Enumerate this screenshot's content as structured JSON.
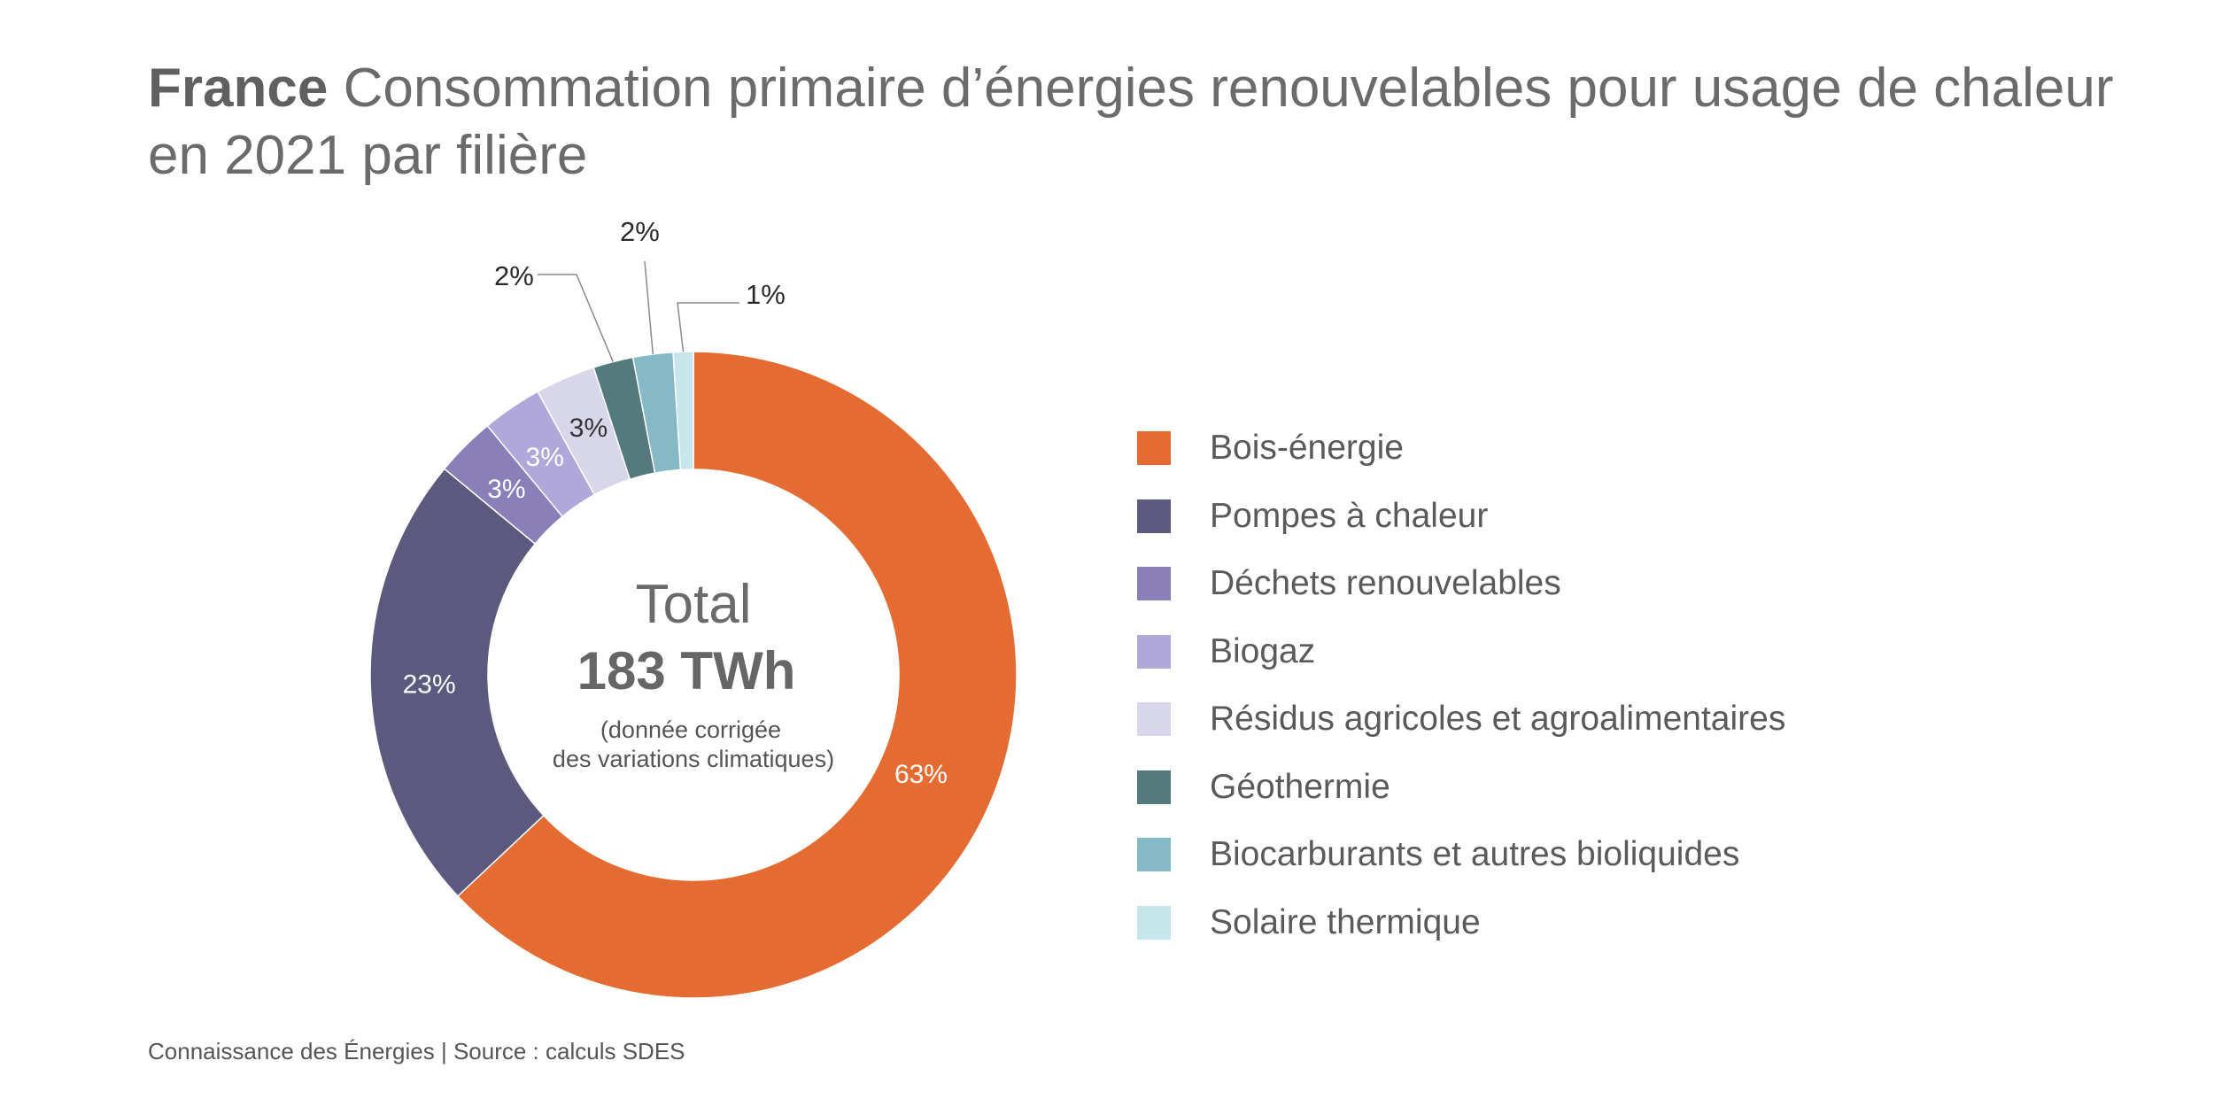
{
  "title": {
    "bold": "France",
    "rest": "Consommation primaire d’énergies renouvelables pour usage de chaleur en 2021 par filière"
  },
  "center": {
    "label": "Total",
    "value": "183 TWh",
    "note_line1": "(donnée corrigée",
    "note_line2": "des variations climatiques)"
  },
  "source": "Connaissance des Énergies | Source : calculs SDES",
  "chart_data": {
    "type": "pie",
    "style": "donut",
    "title": "France Consommation primaire d’énergies renouvelables pour usage de chaleur en 2021 par filière",
    "unit": "%",
    "total_label": "183 TWh",
    "legend_position": "right",
    "categories": [
      "Bois-énergie",
      "Pompes à chaleur",
      "Déchets renouvelables",
      "Biogaz",
      "Résidus agricoles et agroalimentaires",
      "Géothermie",
      "Biocarburants et autres bioliquides",
      "Solaire thermique"
    ],
    "values": [
      63,
      23,
      3,
      3,
      3,
      2,
      2,
      1
    ],
    "labels": [
      "63%",
      "23%",
      "3%",
      "3%",
      "3%",
      "2%",
      "2%",
      "1%"
    ],
    "colors": [
      "#e46c33",
      "#5b5a7e",
      "#8a7fb9",
      "#b0a8da",
      "#d8d6ea",
      "#557a7d",
      "#85b9c5",
      "#c6e6ec"
    ]
  }
}
